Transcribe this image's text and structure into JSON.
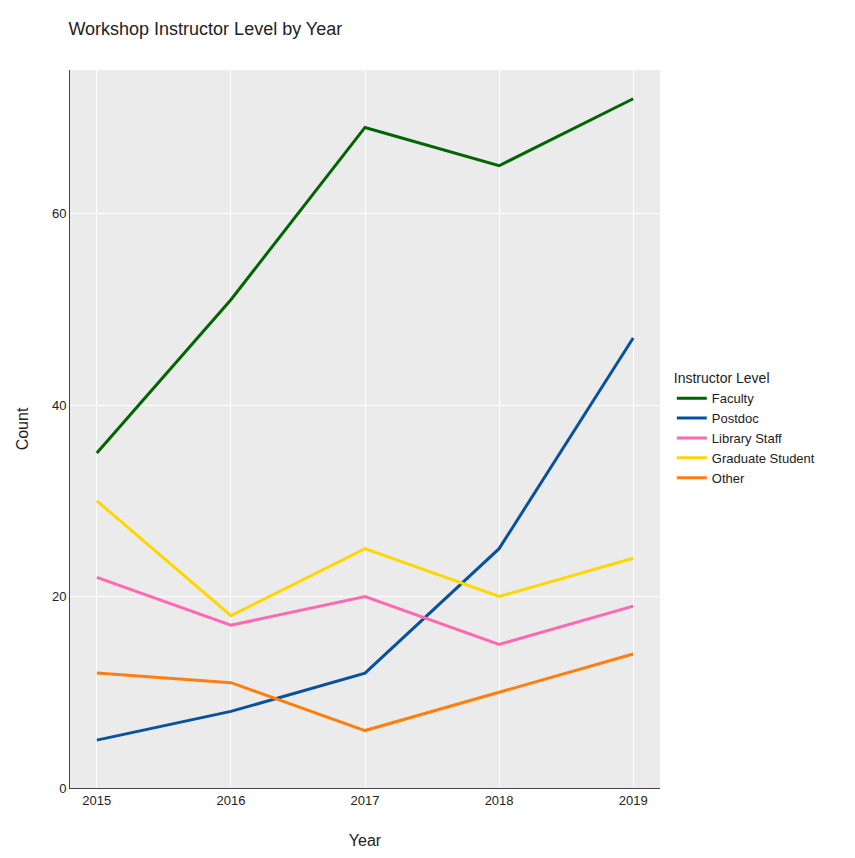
{
  "chart_data": {
    "type": "line",
    "title": "Workshop Instructor Level by Year",
    "x_label": "Year",
    "y_label": "Count",
    "legend_title": "Instructor Level",
    "x": [
      2015,
      2016,
      2017,
      2018,
      2019
    ],
    "series": [
      {
        "name": "Faculty",
        "color": "#006400",
        "values": [
          35,
          51,
          69,
          65,
          72
        ]
      },
      {
        "name": "Postdoc",
        "color": "#08519c",
        "values": [
          5,
          8,
          12,
          25,
          47
        ]
      },
      {
        "name": "Library Staff",
        "color": "#ff69b4",
        "values": [
          22,
          17,
          20,
          15,
          19
        ]
      },
      {
        "name": "Graduate Student",
        "color": "#ffd700",
        "values": [
          30,
          18,
          25,
          20,
          24
        ]
      },
      {
        "name": "Other",
        "color": "#ff7f0e",
        "values": [
          12,
          11,
          6,
          10,
          14
        ]
      }
    ],
    "xlim": [
      2014.8,
      2019.2
    ],
    "xticks": [
      2015,
      2016,
      2017,
      2018,
      2019
    ],
    "ylim": [
      0,
      75
    ],
    "yticks": [
      0,
      20,
      40,
      60
    ],
    "grid": true,
    "legend": "right"
  }
}
